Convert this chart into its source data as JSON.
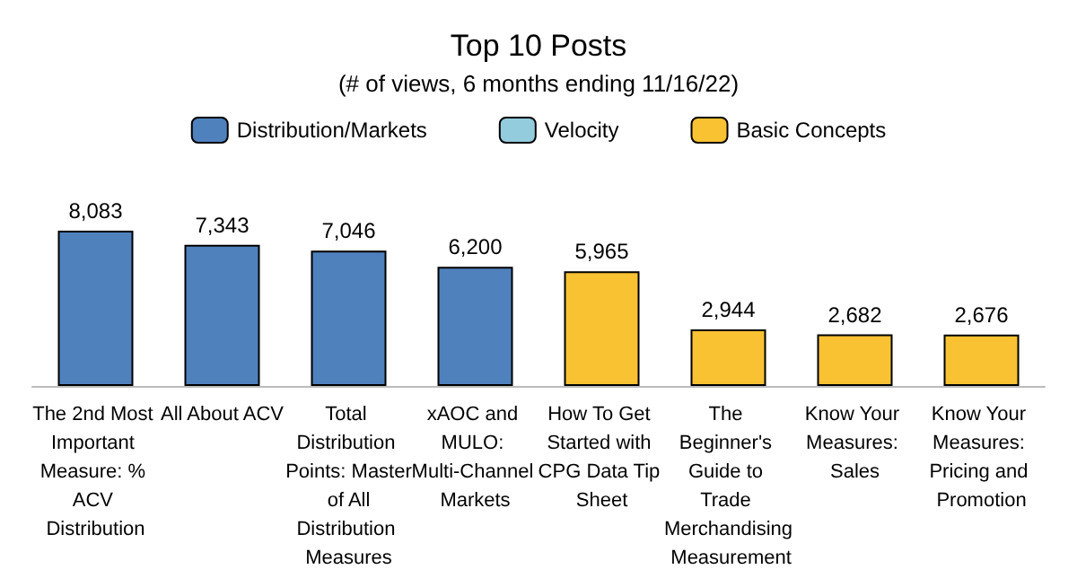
{
  "chart_data": {
    "type": "bar",
    "title": "Top 10 Posts",
    "subtitle": "(# of views, 6 months ending 11/16/22)",
    "categories": [
      "The 2nd Most Important Measure: % ACV Distribution",
      "All About ACV",
      "Total Distribution Points: Master of All Distribution Measures",
      "xAOC and MULO: Multi-Channel Markets",
      "How To Get Started with CPG Data Tip Sheet",
      "The Beginner's Guide to Trade Merchandising Measurement",
      "Know Your Measures: Sales",
      "Know Your Measures: Pricing and Promotion"
    ],
    "series": [
      {
        "name": "Distribution/Markets",
        "color": "#4f81bd",
        "values": [
          8083,
          7343,
          7046,
          6200,
          null,
          null,
          null,
          null
        ],
        "value_labels": [
          "8,083",
          "7,343",
          "7,046",
          "6,200",
          null,
          null,
          null,
          null
        ]
      },
      {
        "name": "Velocity",
        "color": "#93cddd",
        "values": [
          null,
          null,
          null,
          null,
          null,
          null,
          null,
          null
        ]
      },
      {
        "name": "Basic Concepts",
        "color": "#f9c232",
        "values": [
          null,
          null,
          null,
          null,
          5965,
          2944,
          2682,
          2676
        ],
        "value_labels": [
          null,
          null,
          null,
          null,
          "5,965",
          "2,944",
          "2,682",
          "2,676"
        ]
      }
    ],
    "stacked": true,
    "legend": "top"
  }
}
